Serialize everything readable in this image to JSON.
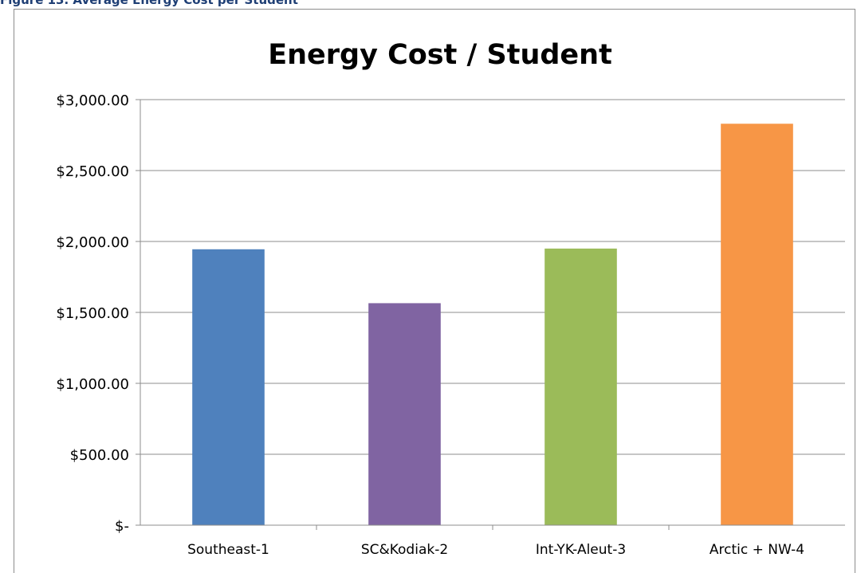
{
  "figure_caption": "Figure 13. Average Energy Cost per Student",
  "chart_data": {
    "type": "bar",
    "title": "Energy Cost / Student",
    "xlabel": "",
    "ylabel": "",
    "categories": [
      "Southeast-1",
      "SC&Kodiak-2",
      "Int-YK-Aleut-3",
      "Arctic + NW-4"
    ],
    "values": [
      1945,
      1565,
      1950,
      2830
    ],
    "colors": [
      "#4f81bd",
      "#8064a2",
      "#9bbb59",
      "#f79646"
    ],
    "ylim": [
      0,
      3000
    ],
    "yticks": [
      0,
      500,
      1000,
      1500,
      2000,
      2500,
      3000
    ],
    "ytick_labels": [
      "$-",
      "$500.00",
      "$1,000.00",
      "$1,500.00",
      "$2,000.00",
      "$2,500.00",
      "$3,000.00"
    ],
    "grid": true,
    "legend": "none"
  }
}
